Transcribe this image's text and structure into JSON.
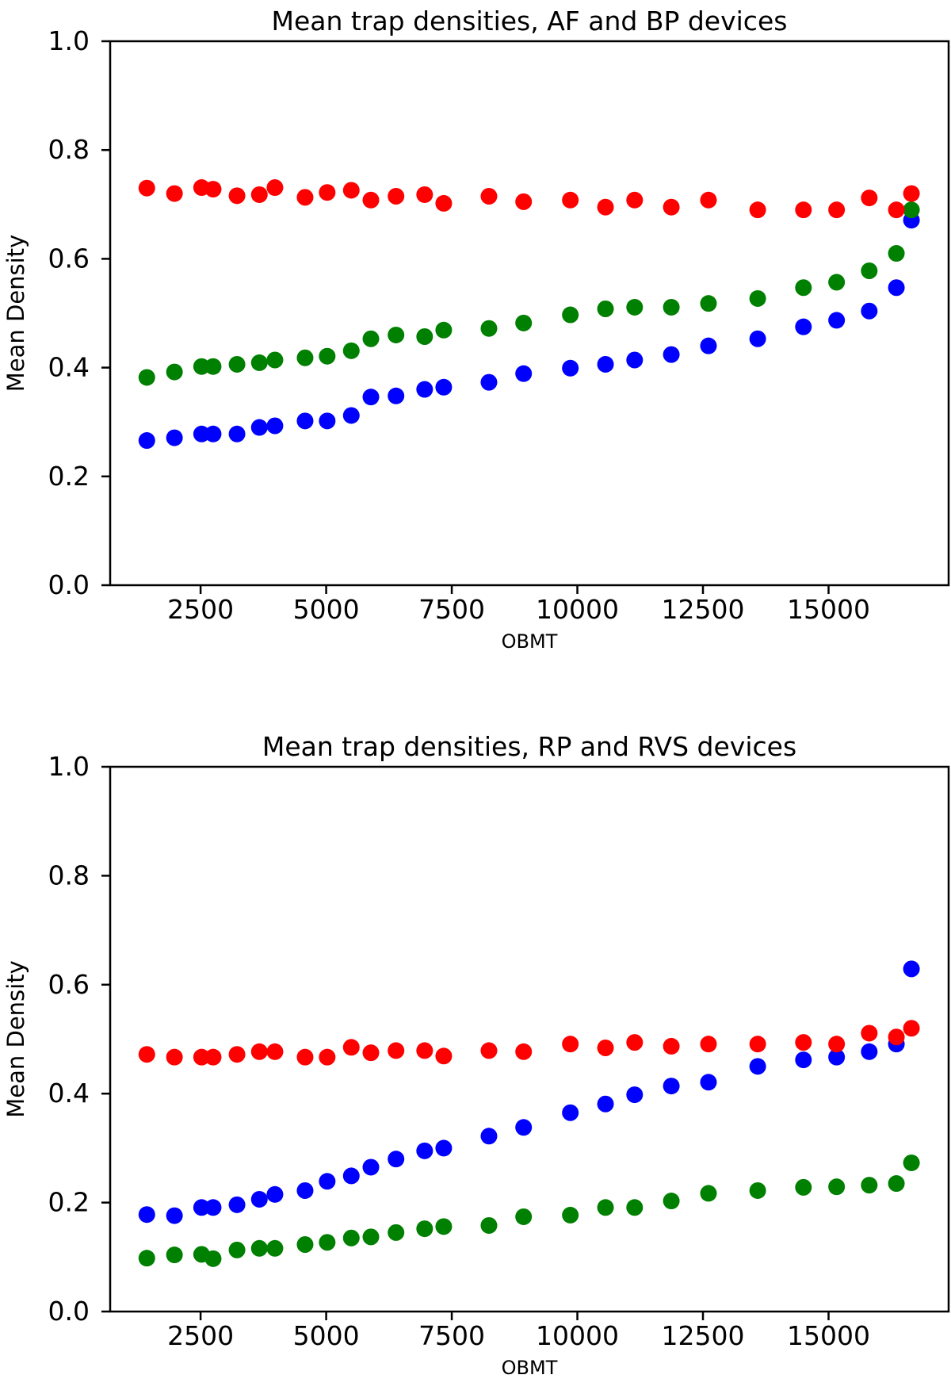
{
  "figure": {
    "background": "#ffffff",
    "text_color": "#000000",
    "spine_color": "#000000"
  },
  "chart_data": [
    {
      "type": "scatter",
      "title": "Mean trap densities, AF and BP devices",
      "xlabel": "OBMT",
      "ylabel": "Mean Density",
      "xlim": [
        700,
        17390
      ],
      "ylim": [
        0.0,
        1.0
      ],
      "grid": false,
      "legend": "none",
      "x_ticks": [
        2500,
        5000,
        7500,
        10000,
        12500,
        15000
      ],
      "x_tick_labels": [
        "2500",
        "5000",
        "7500",
        "10000",
        "12500",
        "15000"
      ],
      "y_ticks": [
        0.0,
        0.2,
        0.4,
        0.6,
        0.8,
        1.0
      ],
      "y_tick_labels": [
        "0.0",
        "0.2",
        "0.4",
        "0.6",
        "0.8",
        "1.0"
      ],
      "x": [
        1430,
        1980,
        2520,
        2750,
        3225,
        3670,
        3980,
        4580,
        5020,
        5500,
        5890,
        6390,
        6960,
        7340,
        8240,
        8930,
        9860,
        10560,
        11140,
        11870,
        12610,
        13590,
        14500,
        15160,
        15810,
        16350,
        16650
      ],
      "series": [
        {
          "name": "blue-series",
          "color": "#0000ff",
          "values": [
            0.266,
            0.271,
            0.278,
            0.278,
            0.278,
            0.29,
            0.293,
            0.302,
            0.302,
            0.312,
            0.346,
            0.348,
            0.36,
            0.364,
            0.373,
            0.389,
            0.399,
            0.406,
            0.414,
            0.424,
            0.44,
            0.453,
            0.475,
            0.487,
            0.504,
            0.547,
            0.671
          ]
        },
        {
          "name": "green-series",
          "color": "#008000",
          "values": [
            0.382,
            0.392,
            0.402,
            0.402,
            0.406,
            0.409,
            0.414,
            0.418,
            0.421,
            0.431,
            0.453,
            0.46,
            0.457,
            0.469,
            0.472,
            0.482,
            0.497,
            0.508,
            0.511,
            0.511,
            0.518,
            0.527,
            0.547,
            0.557,
            0.578,
            0.61,
            0.69
          ]
        },
        {
          "name": "red-series",
          "color": "#ff0000",
          "values": [
            0.73,
            0.72,
            0.731,
            0.728,
            0.716,
            0.718,
            0.731,
            0.713,
            0.722,
            0.726,
            0.708,
            0.715,
            0.718,
            0.702,
            0.715,
            0.705,
            0.708,
            0.695,
            0.708,
            0.695,
            0.708,
            0.69,
            0.69,
            0.69,
            0.712,
            0.69,
            0.72
          ]
        }
      ]
    },
    {
      "type": "scatter",
      "title": "Mean trap densities, RP and RVS devices",
      "xlabel": "OBMT",
      "ylabel": "Mean Density",
      "xlim": [
        700,
        17390
      ],
      "ylim": [
        0.0,
        1.0
      ],
      "grid": false,
      "legend": "none",
      "x_ticks": [
        2500,
        5000,
        7500,
        10000,
        12500,
        15000
      ],
      "x_tick_labels": [
        "2500",
        "5000",
        "7500",
        "10000",
        "12500",
        "15000"
      ],
      "y_ticks": [
        0.0,
        0.2,
        0.4,
        0.6,
        0.8,
        1.0
      ],
      "y_tick_labels": [
        "0.0",
        "0.2",
        "0.4",
        "0.6",
        "0.8",
        "1.0"
      ],
      "x": [
        1430,
        1980,
        2520,
        2750,
        3225,
        3670,
        3980,
        4580,
        5020,
        5500,
        5890,
        6390,
        6960,
        7340,
        8240,
        8930,
        9860,
        10560,
        11140,
        11870,
        12610,
        13590,
        14500,
        15160,
        15810,
        16350,
        16650
      ],
      "series": [
        {
          "name": "blue-series",
          "color": "#0000ff",
          "values": [
            0.178,
            0.176,
            0.191,
            0.191,
            0.196,
            0.206,
            0.215,
            0.222,
            0.239,
            0.249,
            0.265,
            0.28,
            0.295,
            0.3,
            0.322,
            0.338,
            0.365,
            0.381,
            0.398,
            0.414,
            0.421,
            0.45,
            0.462,
            0.467,
            0.477,
            0.491,
            0.629
          ]
        },
        {
          "name": "green-series",
          "color": "#008000",
          "values": [
            0.098,
            0.104,
            0.105,
            0.097,
            0.113,
            0.116,
            0.116,
            0.123,
            0.127,
            0.135,
            0.137,
            0.145,
            0.152,
            0.156,
            0.158,
            0.174,
            0.177,
            0.191,
            0.191,
            0.203,
            0.217,
            0.222,
            0.228,
            0.229,
            0.232,
            0.235,
            0.273
          ]
        },
        {
          "name": "red-series",
          "color": "#ff0000",
          "values": [
            0.472,
            0.467,
            0.467,
            0.467,
            0.472,
            0.477,
            0.477,
            0.467,
            0.467,
            0.485,
            0.475,
            0.479,
            0.479,
            0.469,
            0.479,
            0.477,
            0.491,
            0.484,
            0.494,
            0.487,
            0.491,
            0.491,
            0.494,
            0.491,
            0.511,
            0.504,
            0.52
          ]
        }
      ]
    }
  ]
}
